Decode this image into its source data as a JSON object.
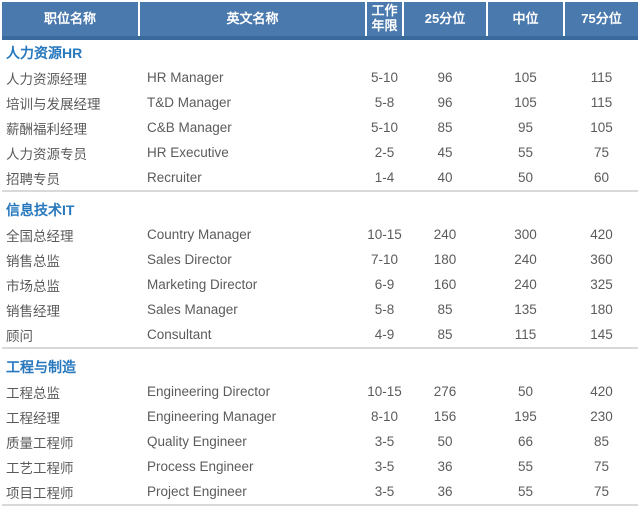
{
  "colors": {
    "header_bg": "#4a79ae",
    "header_border": "#3a6a9c",
    "header_text": "#ffffff",
    "section_title": "#2878be",
    "body_text": "#5b5b5b",
    "divider": "#d9d9d9"
  },
  "table": {
    "columns": [
      "职位名称",
      "英文名称",
      "工作年限",
      "25分位",
      "中位",
      "75分位"
    ],
    "sections": [
      {
        "title": "人力资源HR",
        "rows": [
          [
            "人力资源经理",
            "HR Manager",
            "5-10",
            "96",
            "105",
            "115"
          ],
          [
            "培训与发展经理",
            "T&D Manager",
            "5-8",
            "96",
            "105",
            "115"
          ],
          [
            "薪酬福利经理",
            "C&B Manager",
            "5-10",
            "85",
            "95",
            "105"
          ],
          [
            "人力资源专员",
            "HR Executive",
            "2-5",
            "45",
            "55",
            "75"
          ],
          [
            "招聘专员",
            "Recruiter",
            "1-4",
            "40",
            "50",
            "60"
          ]
        ]
      },
      {
        "title": "信息技术IT",
        "rows": [
          [
            "全国总经理",
            "Country Manager",
            "10-15",
            "240",
            "300",
            "420"
          ],
          [
            "销售总监",
            "Sales Director",
            "7-10",
            "180",
            "240",
            "360"
          ],
          [
            "市场总监",
            "Marketing Director",
            "6-9",
            "160",
            "240",
            "325"
          ],
          [
            "销售经理",
            "Sales Manager",
            "5-8",
            "85",
            "135",
            "180"
          ],
          [
            "顾问",
            "Consultant",
            "4-9",
            "85",
            "115",
            "145"
          ]
        ]
      },
      {
        "title": "工程与制造",
        "rows": [
          [
            "工程总监",
            "Engineering Director",
            "10-15",
            "276",
            "50",
            "420"
          ],
          [
            "工程经理",
            "Engineering Manager",
            "8-10",
            "156",
            "195",
            "230"
          ],
          [
            "质量工程师",
            "Quality Engineer",
            "3-5",
            "50",
            "66",
            "85"
          ],
          [
            "工艺工程师",
            "Process Engineer",
            "3-5",
            "36",
            "55",
            "75"
          ],
          [
            "项目工程师",
            "Project Engineer",
            "3-5",
            "36",
            "55",
            "75"
          ]
        ]
      }
    ]
  }
}
